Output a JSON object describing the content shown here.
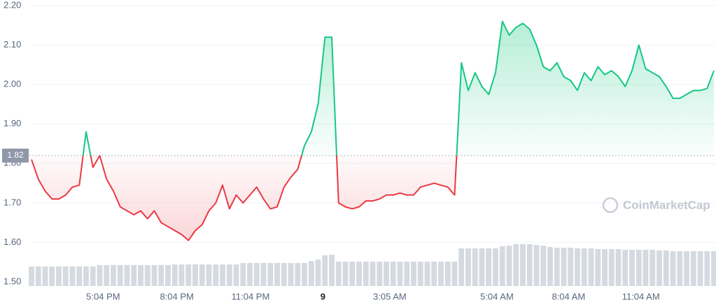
{
  "chart_data": {
    "type": "line",
    "series": [
      {
        "name": "Price",
        "up_color": "#16c784",
        "down_color": "#ea3943",
        "values": [
          1.81,
          1.76,
          1.73,
          1.71,
          1.71,
          1.72,
          1.74,
          1.745,
          1.88,
          1.79,
          1.82,
          1.76,
          1.73,
          1.69,
          1.68,
          1.67,
          1.68,
          1.66,
          1.68,
          1.65,
          1.64,
          1.63,
          1.62,
          1.605,
          1.63,
          1.645,
          1.68,
          1.7,
          1.745,
          1.685,
          1.72,
          1.7,
          1.72,
          1.74,
          1.71,
          1.685,
          1.69,
          1.74,
          1.765,
          1.785,
          1.845,
          1.88,
          1.95,
          2.12,
          2.12,
          1.7,
          1.69,
          1.685,
          1.69,
          1.705,
          1.705,
          1.71,
          1.72,
          1.72,
          1.725,
          1.72,
          1.72,
          1.74,
          1.745,
          1.75,
          1.745,
          1.74,
          1.72,
          2.055,
          1.985,
          2.03,
          1.995,
          1.975,
          2.03,
          2.16,
          2.125,
          2.145,
          2.155,
          2.14,
          2.1,
          2.045,
          2.035,
          2.055,
          2.02,
          2.01,
          1.985,
          2.03,
          2.01,
          2.045,
          2.025,
          2.035,
          2.02,
          1.995,
          2.035,
          2.1,
          2.04,
          2.03,
          2.02,
          1.995,
          1.965,
          1.965,
          1.975,
          1.985,
          1.985,
          1.99,
          2.035
        ]
      }
    ],
    "volume": {
      "color": "#d5d9e0",
      "ylim": [
        0,
        60
      ],
      "values": [
        28,
        28,
        28,
        28,
        28,
        28,
        28,
        28,
        28,
        28,
        30,
        30,
        30,
        30,
        30,
        30,
        30,
        30,
        30,
        30,
        30,
        31,
        31,
        31,
        31,
        31,
        31,
        31,
        31,
        31,
        31,
        33,
        33,
        33,
        33,
        33,
        33,
        33,
        33,
        33,
        33,
        36,
        38,
        44,
        45,
        35,
        35,
        35,
        35,
        35,
        35,
        35,
        35,
        35,
        35,
        35,
        35,
        35,
        35,
        35,
        35,
        35,
        35,
        54,
        54,
        54,
        54,
        54,
        54,
        57,
        58,
        60,
        60,
        60,
        59,
        58,
        56,
        55,
        55,
        55,
        54,
        54,
        54,
        53,
        53,
        53,
        53,
        52,
        52,
        52,
        52,
        52,
        51,
        51,
        50,
        50,
        50,
        50,
        50,
        50,
        50
      ]
    },
    "baseline": 1.82,
    "xlim": [
      0,
      100
    ],
    "xticks": [
      {
        "value": 10.5,
        "label": "5:04 PM"
      },
      {
        "value": 21.3,
        "label": "8:04 PM"
      },
      {
        "value": 32.1,
        "label": "11:04 PM"
      },
      {
        "value": 42.7,
        "label": "9"
      },
      {
        "value": 52.5,
        "label": "3:05 AM"
      },
      {
        "value": 68.2,
        "label": "5:04 AM"
      },
      {
        "value": 78.7,
        "label": "8:04 AM"
      },
      {
        "value": 89.3,
        "label": "11:04 AM"
      }
    ],
    "ylim": [
      1.5,
      2.2
    ],
    "yticks": [
      {
        "value": 1.5,
        "label": "1.50"
      },
      {
        "value": 1.6,
        "label": "1.60"
      },
      {
        "value": 1.7,
        "label": "1.70"
      },
      {
        "value": 1.8,
        "label": "1.80"
      },
      {
        "value": 1.9,
        "label": "1.90"
      },
      {
        "value": 2.0,
        "label": "2.00"
      },
      {
        "value": 2.1,
        "label": "2.10"
      },
      {
        "value": 2.2,
        "label": "2.20"
      }
    ],
    "grid": true,
    "watermark": "CoinMarketCap"
  }
}
